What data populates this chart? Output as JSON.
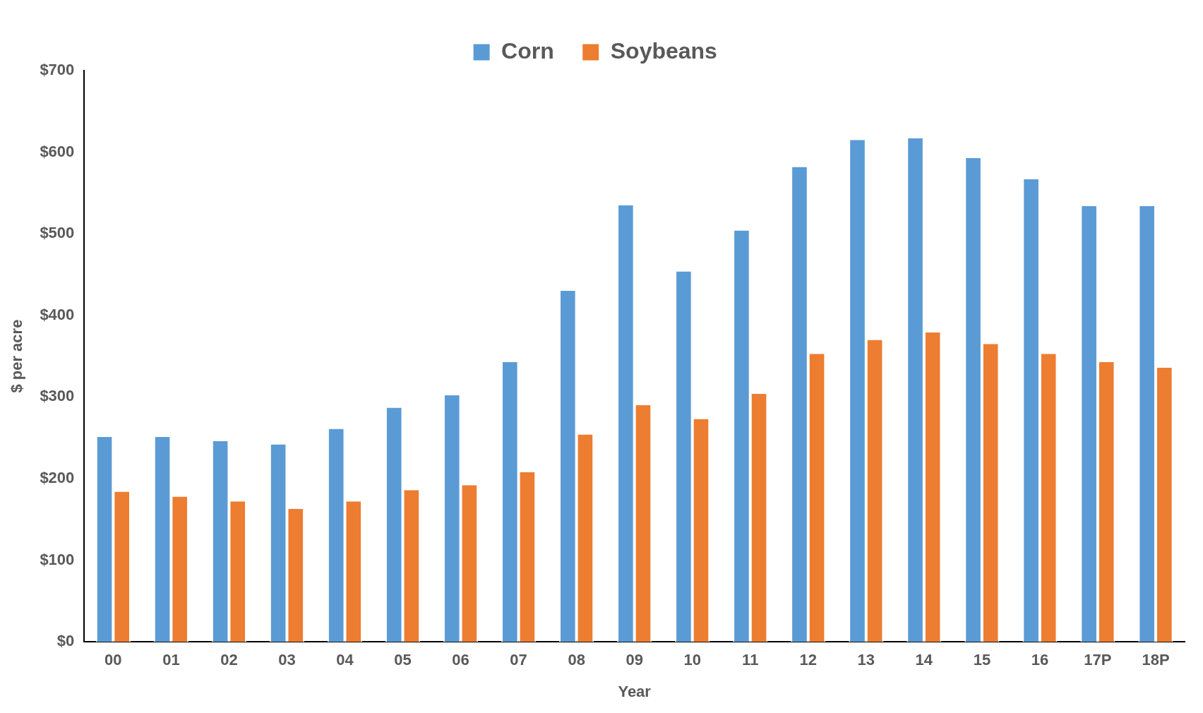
{
  "chart_data": {
    "type": "bar",
    "xlabel": "Year",
    "ylabel": "$ per acre",
    "categories": [
      "00",
      "01",
      "02",
      "03",
      "04",
      "05",
      "06",
      "07",
      "08",
      "09",
      "10",
      "11",
      "12",
      "13",
      "14",
      "15",
      "16",
      "17P",
      "18P"
    ],
    "series": [
      {
        "name": "Corn",
        "color": "#5b9bd5",
        "values": [
          251,
          251,
          246,
          242,
          261,
          287,
          302,
          343,
          430,
          535,
          454,
          504,
          582,
          615,
          617,
          593,
          567,
          534,
          534
        ]
      },
      {
        "name": "Soybeans",
        "color": "#ed7d31",
        "values": [
          184,
          178,
          172,
          163,
          172,
          186,
          192,
          208,
          254,
          290,
          273,
          304,
          353,
          370,
          379,
          365,
          353,
          343,
          336
        ]
      }
    ],
    "ylim": [
      0,
      700
    ],
    "yticks": [
      {
        "value": 0,
        "label": "$0"
      },
      {
        "value": 100,
        "label": "$100"
      },
      {
        "value": 200,
        "label": "$200"
      },
      {
        "value": 300,
        "label": "$300"
      },
      {
        "value": 400,
        "label": "$400"
      },
      {
        "value": 500,
        "label": "$500"
      },
      {
        "value": 600,
        "label": "$600"
      },
      {
        "value": 700,
        "label": "$700"
      }
    ],
    "grid": false,
    "legend": "top"
  }
}
